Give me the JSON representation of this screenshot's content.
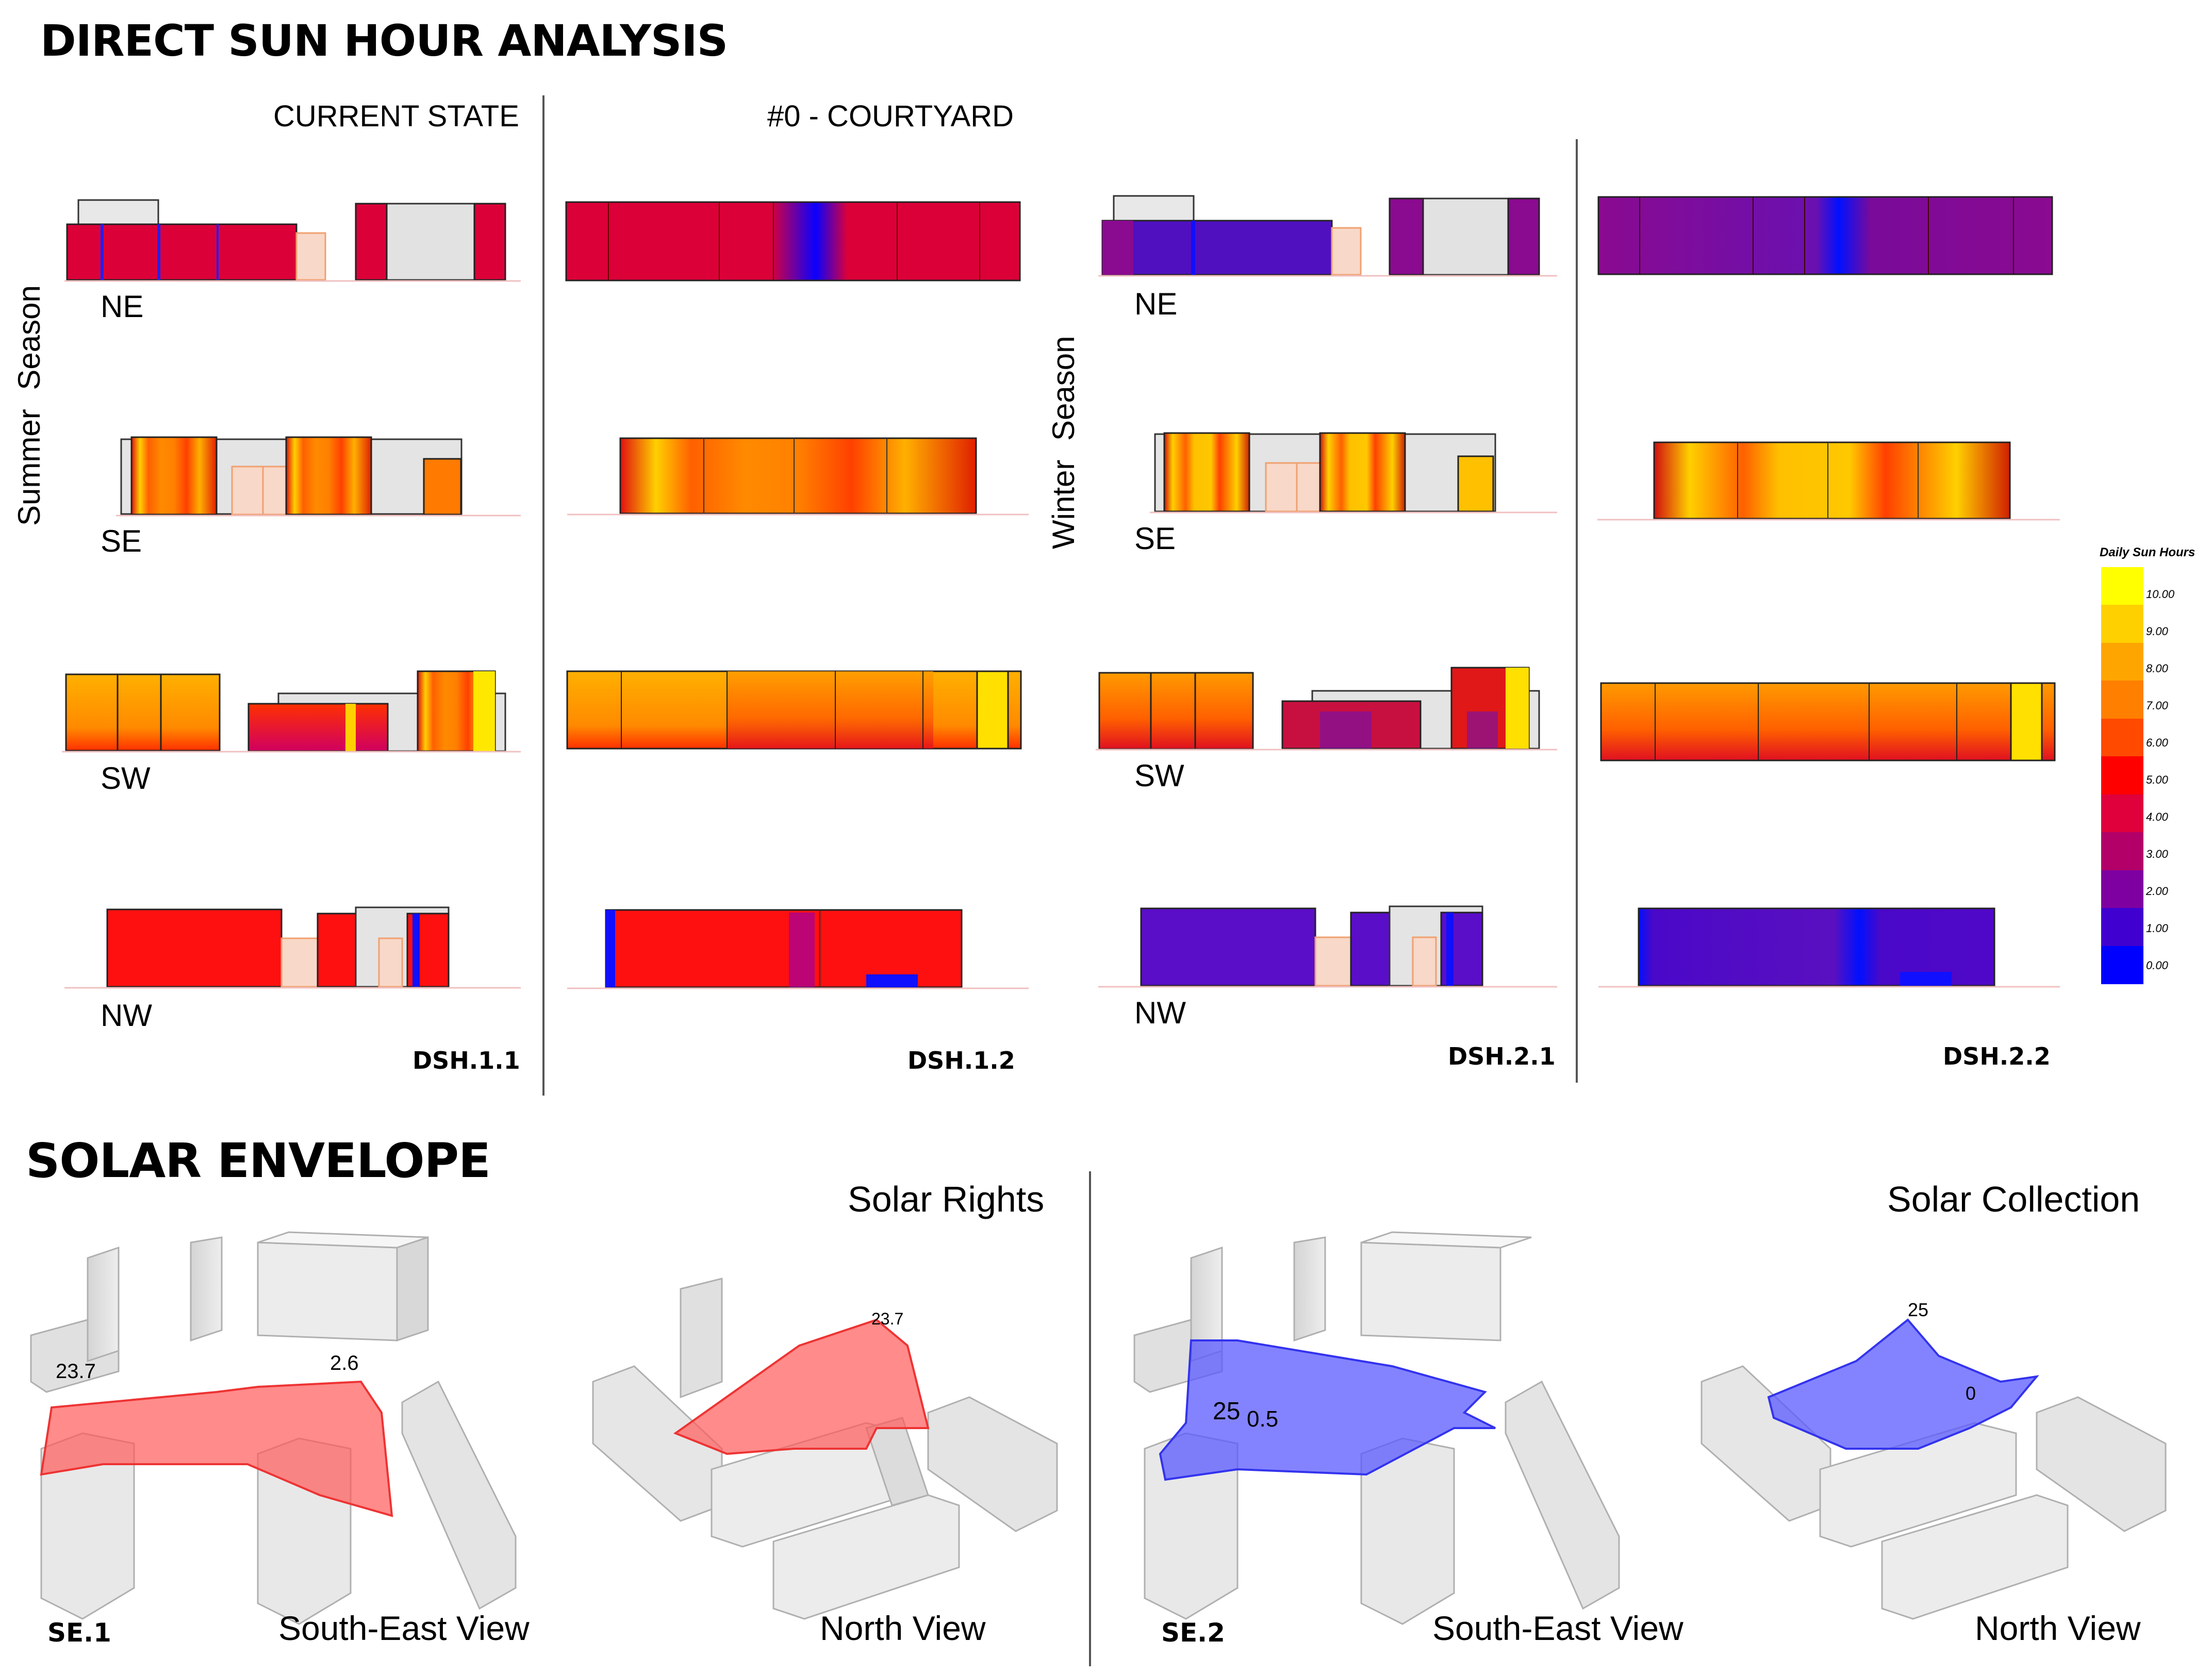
{
  "dsh": {
    "title": "DIRECT SUN HOUR ANALYSIS",
    "col_current": "CURRENT STATE",
    "col_courtyard": "#0 - COURTYARD",
    "summer_label": "Summer  Season",
    "winter_label": "Winter  Season",
    "dir_ne": "NE",
    "dir_se": "SE",
    "dir_sw": "SW",
    "dir_nw": "NW",
    "codes": [
      "DSH.1.1",
      "DSH.1.2",
      "DSH.2.1",
      "DSH.2.2"
    ]
  },
  "legend": {
    "title": "Daily Sun Hours",
    "ticks": [
      "10.00",
      "9.00",
      "8.00",
      "7.00",
      "6.00",
      "5.00",
      "4.00",
      "3.00",
      "2.00",
      "1.00",
      "0.00"
    ],
    "colors": [
      "#ffff00",
      "#ffd000",
      "#ffa500",
      "#ff7f00",
      "#ff4a00",
      "#ff0000",
      "#e0003c",
      "#b30068",
      "#7f00a0",
      "#4000d0",
      "#0000ff"
    ]
  },
  "solar": {
    "title": "SOLAR ENVELOPE",
    "rights": "Solar Rights",
    "collection": "Solar Collection",
    "se1": "SE.1",
    "se2": "SE.2",
    "se_view": "South-East View",
    "north_view": "North View",
    "labels": {
      "a": "23.7",
      "b": "2.6",
      "c": "23.7",
      "d": "25",
      "e": "0.5",
      "f": "25",
      "g": "0"
    }
  },
  "colors": {
    "summer_ne": "#dc0038",
    "warm_orange": "#ff8000",
    "warm_yellow": "#ffc000",
    "nw_red": "#ff1010",
    "winter_purple": "#5a0ec8",
    "winter_magenta": "#9a0a8a",
    "envelope_red": "#ff5a5a",
    "envelope_blue": "#5a5aff"
  }
}
